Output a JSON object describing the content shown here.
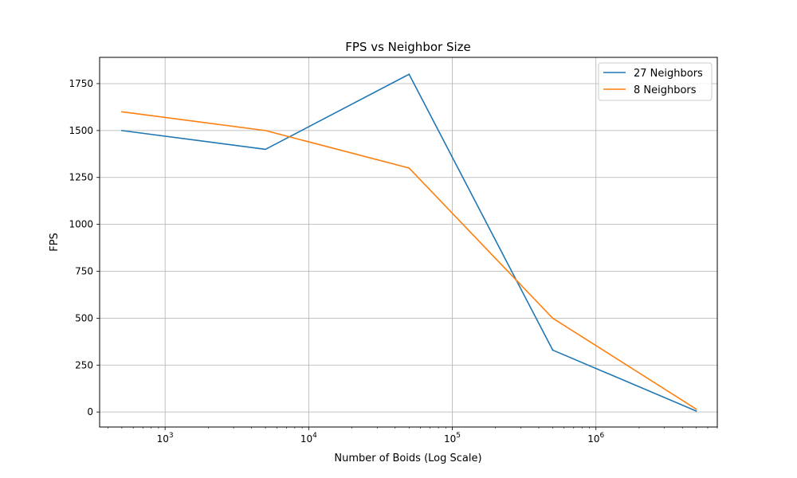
{
  "chart_data": {
    "type": "line",
    "title": "FPS vs Neighbor Size",
    "xlabel": "Number of Boids (Log Scale)",
    "ylabel": "FPS",
    "x_scale": "log",
    "xlim": [
      350,
      7000000
    ],
    "ylim": [
      -80,
      1890
    ],
    "x_major_ticks": [
      {
        "value": 1000,
        "base": "10",
        "exp": "3"
      },
      {
        "value": 10000,
        "base": "10",
        "exp": "4"
      },
      {
        "value": 100000,
        "base": "10",
        "exp": "5"
      },
      {
        "value": 1000000,
        "base": "10",
        "exp": "6"
      }
    ],
    "y_ticks": [
      0,
      250,
      500,
      750,
      1000,
      1250,
      1500,
      1750
    ],
    "y_tick_labels": [
      "0",
      "250",
      "500",
      "750",
      "1000",
      "1250",
      "1500",
      "1750"
    ],
    "grid": true,
    "legend_position": "top-right",
    "x": [
      500,
      5000,
      50000,
      500000,
      5000000
    ],
    "series": [
      {
        "name": "27 Neighbors",
        "color": "#1f77b4",
        "values": [
          1500,
          1400,
          1800,
          330,
          5
        ]
      },
      {
        "name": "8 Neighbors",
        "color": "#ff7f0e",
        "values": [
          1600,
          1500,
          1300,
          500,
          15
        ]
      }
    ]
  }
}
